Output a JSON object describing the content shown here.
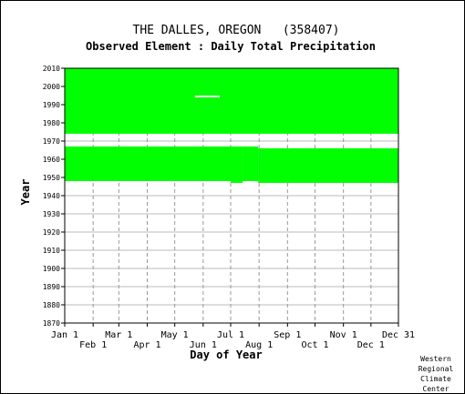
{
  "chart_data": {
    "type": "heatmap",
    "title": "THE DALLES, OREGON   (358407)",
    "subtitle": "Observed Element : Daily Total Precipitation",
    "xlabel": "Day of Year",
    "ylabel": "Year",
    "ylim": [
      1870,
      2010
    ],
    "xlim": [
      1,
      365
    ],
    "x_ticks_upper": [
      {
        "label": "Jan 1",
        "day": 1
      },
      {
        "label": "Mar 1",
        "day": 60
      },
      {
        "label": "May 1",
        "day": 121
      },
      {
        "label": "Jul 1",
        "day": 182
      },
      {
        "label": "Sep 1",
        "day": 244
      },
      {
        "label": "Nov 1",
        "day": 305
      },
      {
        "label": "Dec 31",
        "day": 365
      }
    ],
    "x_ticks_lower": [
      {
        "label": "Feb 1",
        "day": 32
      },
      {
        "label": "Apr 1",
        "day": 91
      },
      {
        "label": "Jun 1",
        "day": 152
      },
      {
        "label": "Aug 1",
        "day": 213
      },
      {
        "label": "Oct 1",
        "day": 274
      },
      {
        "label": "Dec 1",
        "day": 335
      }
    ],
    "y_ticks": [
      1870,
      1880,
      1890,
      1900,
      1910,
      1920,
      1930,
      1940,
      1950,
      1960,
      1970,
      1980,
      1990,
      2000,
      2010
    ],
    "grid": true,
    "data_color": "#00ff00",
    "observed_blocks": [
      {
        "day_start": 1,
        "day_end": 365,
        "year_start": 1974,
        "year_end": 2010
      },
      {
        "day_start": 1,
        "day_end": 32,
        "year_start": 1975,
        "year_end": 2010
      },
      {
        "day_start": 1,
        "day_end": 182,
        "year_start": 1948,
        "year_end": 1967
      },
      {
        "day_start": 182,
        "day_end": 195,
        "year_start": 1947,
        "year_end": 1967
      },
      {
        "day_start": 195,
        "day_end": 212,
        "year_start": 1948,
        "year_end": 1967
      },
      {
        "day_start": 212,
        "day_end": 365,
        "year_start": 1947,
        "year_end": 1966
      }
    ],
    "missing_gaps": [
      {
        "day_start": 143,
        "day_end": 170,
        "year_start": 1994,
        "year_end": 1995
      }
    ]
  },
  "credit": {
    "line1": "Western",
    "line2": "Regional",
    "line3": "Climate",
    "line4": "Center"
  }
}
